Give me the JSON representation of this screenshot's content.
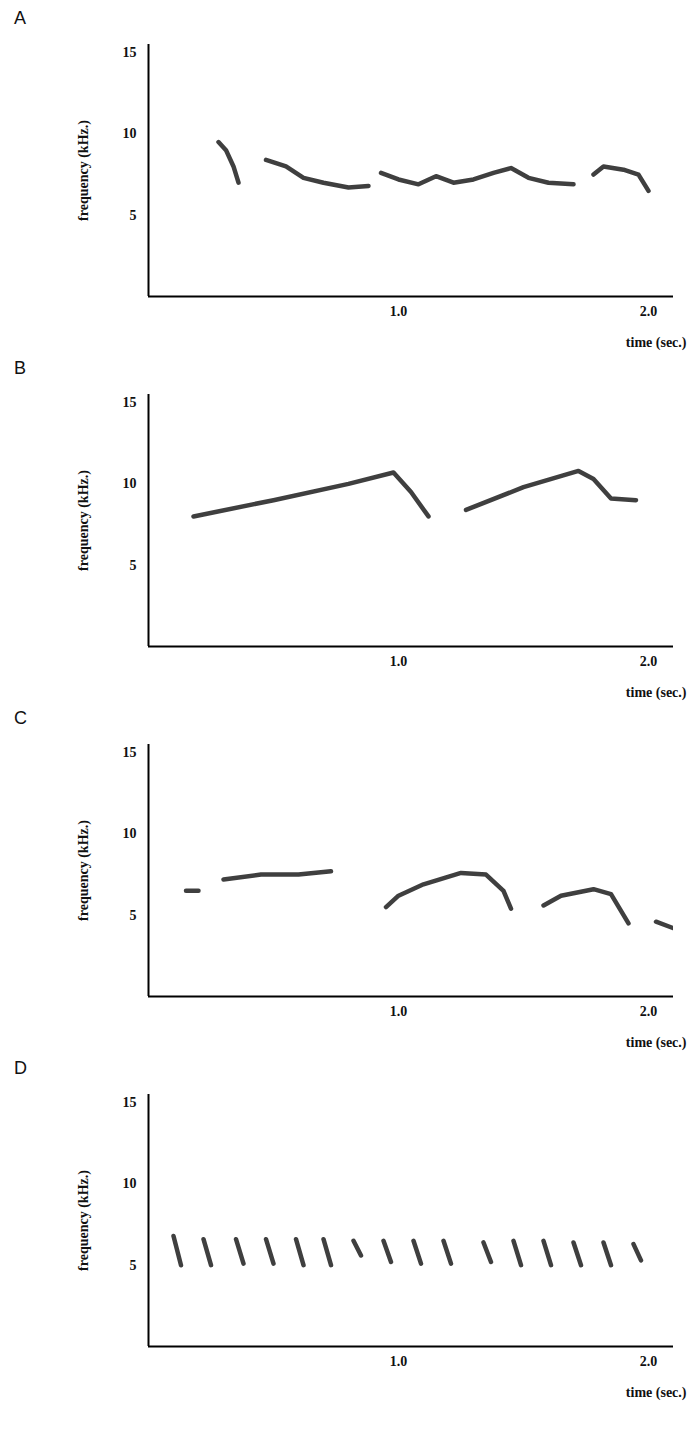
{
  "chart_data": [
    {
      "type": "line",
      "title": "A",
      "x_label": "time (sec.)",
      "y_label": "frequency (kHz.)",
      "xlim": [
        0,
        2.1
      ],
      "ylim": [
        0,
        15.5
      ],
      "xticks": [
        1,
        2
      ],
      "yticks": [
        5,
        10,
        15
      ],
      "series": [
        {
          "color": "#2a2a2a",
          "line_style": "solid",
          "x": [
            0.28,
            0.31,
            0.34,
            0.36,
            null,
            0.47,
            0.55,
            0.62,
            0.7,
            0.8,
            0.88,
            null,
            0.93,
            1.0,
            1.08,
            1.15,
            1.22,
            1.3,
            1.38,
            1.45,
            1.52,
            1.6,
            1.7,
            null,
            1.78,
            1.82,
            1.9,
            1.96,
            2.0
          ],
          "values": [
            9.5,
            9.0,
            8.0,
            7.0,
            null,
            8.4,
            8.0,
            7.3,
            7.0,
            6.7,
            6.8,
            null,
            7.6,
            7.2,
            6.9,
            7.4,
            7.0,
            7.2,
            7.6,
            7.9,
            7.3,
            7.0,
            6.9,
            null,
            7.5,
            8.0,
            7.8,
            7.5,
            6.5
          ]
        }
      ]
    },
    {
      "type": "line",
      "title": "B",
      "x_label": "time (sec.)",
      "y_label": "frequency (kHz.)",
      "xlim": [
        0,
        2.1
      ],
      "ylim": [
        0,
        15.5
      ],
      "xticks": [
        1,
        2
      ],
      "yticks": [
        5,
        10,
        15
      ],
      "series": [
        {
          "color": "#2a2a2a",
          "line_style": "solid",
          "x": [
            0.18,
            0.5,
            0.8,
            0.98,
            1.05,
            1.12,
            null,
            1.27,
            1.5,
            1.72,
            1.78,
            1.85,
            1.95
          ],
          "values": [
            8.0,
            9.0,
            10.0,
            10.7,
            9.5,
            8.0,
            null,
            8.4,
            9.8,
            10.8,
            10.3,
            9.1,
            9.0
          ]
        }
      ]
    },
    {
      "type": "line",
      "title": "C",
      "x_label": "time (sec.)",
      "y_label": "frequency (kHz.)",
      "xlim": [
        0,
        2.1
      ],
      "ylim": [
        0,
        15.5
      ],
      "xticks": [
        1,
        2
      ],
      "yticks": [
        5,
        10,
        15
      ],
      "series": [
        {
          "color": "#2a2a2a",
          "line_style": "solid",
          "x": [
            0.15,
            0.2,
            null,
            0.3,
            0.45,
            0.6,
            0.73,
            null,
            0.95,
            1.0,
            1.1,
            1.25,
            1.35,
            1.42,
            1.45,
            null,
            1.58,
            1.65,
            1.78,
            1.85,
            1.92,
            null,
            2.03,
            2.1
          ],
          "values": [
            6.5,
            6.5,
            null,
            7.2,
            7.5,
            7.5,
            7.7,
            null,
            5.5,
            6.2,
            6.9,
            7.6,
            7.5,
            6.5,
            5.4,
            null,
            5.6,
            6.2,
            6.6,
            6.3,
            4.5,
            null,
            4.6,
            4.2
          ]
        }
      ]
    },
    {
      "type": "line",
      "title": "D",
      "x_label": "time (sec.)",
      "y_label": "frequency (kHz.)",
      "xlim": [
        0,
        2.1
      ],
      "ylim": [
        0,
        15.5
      ],
      "xticks": [
        1,
        2
      ],
      "yticks": [
        5,
        10,
        15
      ],
      "series": [
        {
          "color": "#2a2a2a",
          "line_style": "solid",
          "x": [
            0.1,
            0.13,
            null,
            0.22,
            0.25,
            null,
            0.35,
            0.38,
            null,
            0.47,
            0.5,
            null,
            0.59,
            0.62,
            null,
            0.7,
            0.73,
            null,
            0.82,
            0.85,
            null,
            0.94,
            0.97,
            null,
            1.06,
            1.09,
            null,
            1.18,
            1.21,
            null,
            1.34,
            1.37,
            null,
            1.46,
            1.49,
            null,
            1.58,
            1.61,
            null,
            1.7,
            1.73,
            null,
            1.82,
            1.85,
            null,
            1.94,
            1.97
          ],
          "values": [
            6.8,
            5.0,
            null,
            6.6,
            5.0,
            null,
            6.6,
            5.1,
            null,
            6.6,
            5.1,
            null,
            6.6,
            5.0,
            null,
            6.6,
            5.0,
            null,
            6.5,
            5.6,
            null,
            6.5,
            5.2,
            null,
            6.5,
            5.1,
            null,
            6.5,
            5.1,
            null,
            6.4,
            5.2,
            null,
            6.5,
            5.0,
            null,
            6.5,
            5.0,
            null,
            6.4,
            5.0,
            null,
            6.4,
            5.0,
            null,
            6.3,
            5.3
          ]
        }
      ]
    }
  ]
}
